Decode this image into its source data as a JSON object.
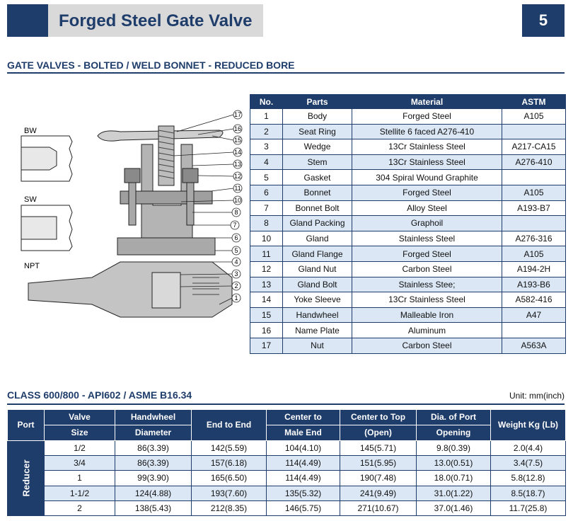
{
  "header": {
    "title": "Forged Steel Gate Valve",
    "page_number": "5"
  },
  "section1": {
    "title": "GATE VALVES - BOLTED / WELD BONNET - REDUCED BORE"
  },
  "drawing": {
    "end_labels": [
      "BW",
      "SW",
      "NPT"
    ],
    "callouts": [
      "17",
      "16",
      "15",
      "14",
      "13",
      "12",
      "11",
      "10",
      "8",
      "7",
      "6",
      "5",
      "4",
      "3",
      "2",
      "1"
    ]
  },
  "parts_table": {
    "headers": [
      "No.",
      "Parts",
      "Material",
      "ASTM"
    ],
    "rows": [
      [
        "1",
        "Body",
        "Forged Steel",
        "A105"
      ],
      [
        "2",
        "Seat Ring",
        "Stellite 6 faced A276-410",
        ""
      ],
      [
        "3",
        "Wedge",
        "13Cr Stainless Steel",
        "A217-CA15"
      ],
      [
        "4",
        "Stem",
        "13Cr Stainless Steel",
        "A276-410"
      ],
      [
        "5",
        "Gasket",
        "304 Spiral Wound Graphite",
        ""
      ],
      [
        "6",
        "Bonnet",
        "Forged Steel",
        "A105"
      ],
      [
        "7",
        "Bonnet Bolt",
        "Alloy Steel",
        "A193-B7"
      ],
      [
        "8",
        "Gland Packing",
        "Graphoil",
        ""
      ],
      [
        "10",
        "Gland",
        "Stainless Steel",
        "A276-316"
      ],
      [
        "11",
        "Gland Flange",
        "Forged Steel",
        "A105"
      ],
      [
        "12",
        "Gland Nut",
        "Carbon Steel",
        "A194-2H"
      ],
      [
        "13",
        "Gland Bolt",
        "Stainless Stee;",
        "A193-B6"
      ],
      [
        "14",
        "Yoke Sleeve",
        "13Cr Stainless Steel",
        "A582-416"
      ],
      [
        "15",
        "Handwheel",
        "Malleable Iron",
        "A47"
      ],
      [
        "16",
        "Name Plate",
        "Aluminum",
        ""
      ],
      [
        "17",
        "Nut",
        "Carbon Steel",
        "A563A"
      ]
    ]
  },
  "section2": {
    "title": "CLASS 600/800 - API602 / ASME B16.34",
    "unit": "Unit: mm(inch)"
  },
  "dims_table": {
    "headers": {
      "port": "Port",
      "valve_size": [
        "Valve",
        "Size"
      ],
      "handwheel": [
        "Handwheel",
        "Diameter"
      ],
      "end_to_end": "End to End",
      "center_male": [
        "Center to",
        "Male End"
      ],
      "center_top": [
        "Center to Top",
        "(Open)"
      ],
      "dia_port": [
        "Dia. of Port",
        "Opening"
      ],
      "weight": "Weight Kg (Lb)"
    },
    "port_label": "Reducer",
    "rows": [
      [
        "1/2",
        "86(3.39)",
        "142(5.59)",
        "104(4.10)",
        "145(5.71)",
        "9.8(0.39)",
        "2.0(4.4)"
      ],
      [
        "3/4",
        "86(3.39)",
        "157(6.18)",
        "114(4.49)",
        "151(5.95)",
        "13.0(0.51)",
        "3.4(7.5)"
      ],
      [
        "1",
        "99(3.90)",
        "165(6.50)",
        "114(4.49)",
        "190(7.48)",
        "18.0(0.71)",
        "5.8(12.8)"
      ],
      [
        "1-1/2",
        "124(4.88)",
        "193(7.60)",
        "135(5.32)",
        "241(9.49)",
        "31.0(1.22)",
        "8.5(18.7)"
      ],
      [
        "2",
        "138(5.43)",
        "212(8.35)",
        "146(5.75)",
        "271(10.67)",
        "37.0(1.46)",
        "11.7(25.8)"
      ]
    ]
  }
}
